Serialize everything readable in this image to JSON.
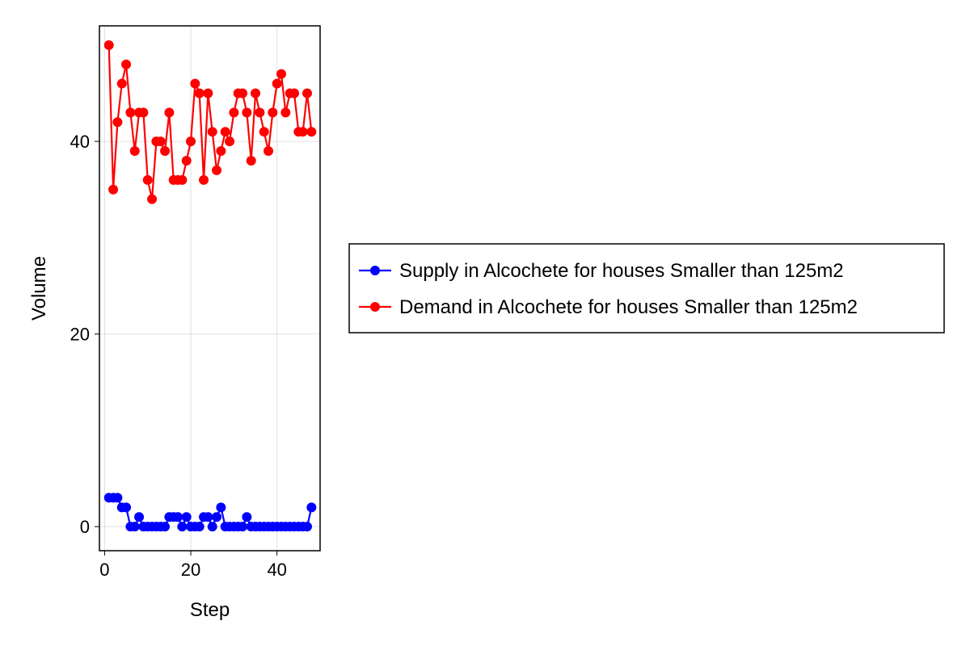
{
  "chart_data": {
    "type": "line",
    "xlabel": "Step",
    "ylabel": "Volume",
    "xlim": [
      -1.2,
      50
    ],
    "ylim": [
      -2.5,
      52
    ],
    "xticks": [
      0,
      20,
      40
    ],
    "yticks": [
      0,
      20,
      40
    ],
    "grid": true,
    "legend_position": "right",
    "series": [
      {
        "name": "Supply in Alcochete for houses Smaller than 125m2",
        "color": "#0000ff",
        "x": [
          1,
          2,
          3,
          4,
          5,
          6,
          7,
          8,
          9,
          10,
          11,
          12,
          13,
          14,
          15,
          16,
          17,
          18,
          19,
          20,
          21,
          22,
          23,
          24,
          25,
          26,
          27,
          28,
          29,
          30,
          31,
          32,
          33,
          34,
          35,
          36,
          37,
          38,
          39,
          40,
          41,
          42,
          43,
          44,
          45,
          46,
          47,
          48
        ],
        "values": [
          3,
          3,
          3,
          2,
          2,
          0,
          0,
          1,
          0,
          0,
          0,
          0,
          0,
          0,
          1,
          1,
          1,
          0,
          1,
          0,
          0,
          0,
          1,
          1,
          0,
          1,
          2,
          0,
          0,
          0,
          0,
          0,
          1,
          0,
          0,
          0,
          0,
          0,
          0,
          0,
          0,
          0,
          0,
          0,
          0,
          0,
          0,
          2
        ]
      },
      {
        "name": "Demand in Alcochete for houses Smaller than 125m2",
        "color": "#ff0000",
        "x": [
          1,
          2,
          3,
          4,
          5,
          6,
          7,
          8,
          9,
          10,
          11,
          12,
          13,
          14,
          15,
          16,
          17,
          18,
          19,
          20,
          21,
          22,
          23,
          24,
          25,
          26,
          27,
          28,
          29,
          30,
          31,
          32,
          33,
          34,
          35,
          36,
          37,
          38,
          39,
          40,
          41,
          42,
          43,
          44,
          45,
          46,
          47,
          48
        ],
        "values": [
          50,
          35,
          42,
          46,
          48,
          43,
          39,
          43,
          43,
          36,
          34,
          40,
          40,
          39,
          43,
          36,
          36,
          36,
          38,
          40,
          46,
          45,
          36,
          45,
          41,
          37,
          39,
          41,
          40,
          43,
          45,
          45,
          43,
          38,
          45,
          43,
          41,
          39,
          43,
          46,
          47,
          43,
          45,
          45,
          41,
          41,
          45,
          41
        ]
      }
    ]
  }
}
